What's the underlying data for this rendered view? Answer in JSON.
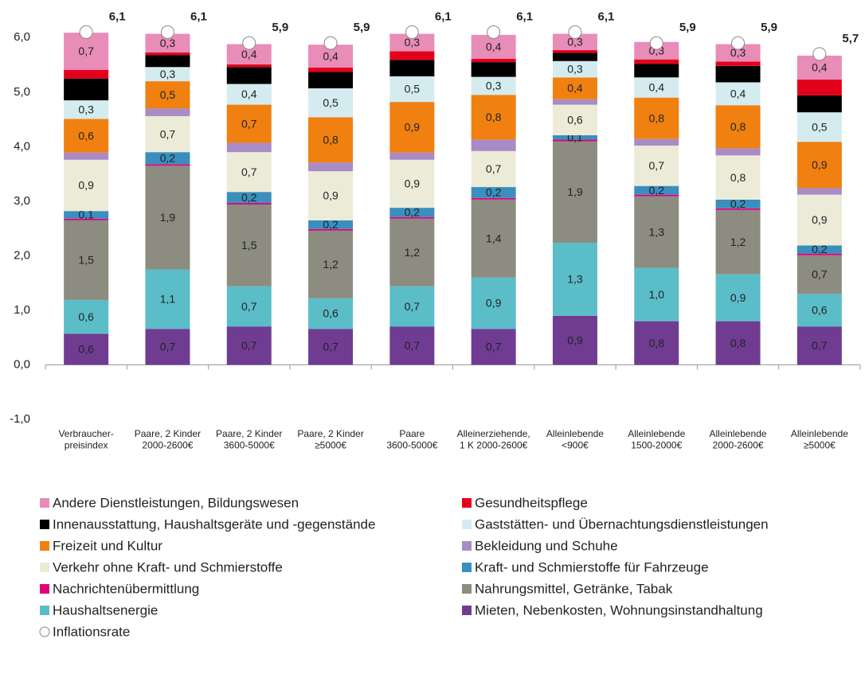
{
  "chart_data": {
    "type": "bar",
    "stacked": true,
    "categories": [
      "Verbraucher-\npreisindex",
      "Paare, 2  Kinder\n2000-2600€",
      "Paare, 2  Kinder\n3600-5000€",
      "Paare, 2  Kinder\n≥5000€",
      "Paare\n3600-5000€",
      "Alleinerziehende,\n1 K 2000-2600€",
      "Alleinlebende\n<900€",
      "Alleinlebende\n1500-2000€",
      "Alleinlebende\n2000-2600€",
      "Alleinlebende\n≥5000€"
    ],
    "ylim": [
      -1,
      6.5
    ],
    "yticks": [
      {
        "value": -1,
        "label": "-1,0"
      },
      {
        "value": 0,
        "label": "0,0"
      },
      {
        "value": 1,
        "label": "1,0"
      },
      {
        "value": 2,
        "label": "2,0"
      },
      {
        "value": 3,
        "label": "3,0"
      },
      {
        "value": 4,
        "label": "4,0"
      },
      {
        "value": 5,
        "label": "5,0"
      },
      {
        "value": 6,
        "label": "6,0"
      }
    ],
    "series": [
      {
        "name": "Mieten, Nebenkosten, Wohnungsinstandhaltung",
        "color": "#6f3c92",
        "values": [
          0.57,
          0.66,
          0.7,
          0.66,
          0.7,
          0.66,
          0.9,
          0.8,
          0.8,
          0.7
        ],
        "value_labels": [
          "0,6",
          "0,7",
          "0,7",
          "0,7",
          "0,7",
          "0,7",
          "0,9",
          "0,8",
          "0,8",
          "0,7"
        ]
      },
      {
        "name": "Haushaltsenergie",
        "color": "#5bbdc8",
        "values": [
          0.62,
          1.09,
          0.74,
          0.56,
          0.74,
          0.94,
          1.34,
          0.98,
          0.86,
          0.6
        ],
        "value_labels": [
          "0,6",
          "1,1",
          "0,7",
          "0,6",
          "0,7",
          "0,9",
          "1,3",
          "1,0",
          "0,9",
          "0,6"
        ]
      },
      {
        "name": "Nahrungsmittel, Getränke, Tabak",
        "color": "#8c8c80",
        "values": [
          1.46,
          1.9,
          1.5,
          1.24,
          1.24,
          1.43,
          1.86,
          1.31,
          1.18,
          0.71
        ],
        "value_labels": [
          "1,5",
          "1,9",
          "1,5",
          "1,2",
          "1,2",
          "1,4",
          "1,9",
          "1,3",
          "1,2",
          "0,7"
        ]
      },
      {
        "name": "Nachrichtenübermittlung",
        "color": "#e0007a",
        "values": [
          0.03,
          0.03,
          0.03,
          0.03,
          0.03,
          0.03,
          0.03,
          0.03,
          0.03,
          0.03
        ],
        "value_labels": [
          null,
          null,
          null,
          null,
          null,
          null,
          null,
          null,
          null,
          null
        ]
      },
      {
        "name": "Kraft- und Schmierstoffe für Fahrzeuge",
        "color": "#3a8fbf",
        "values": [
          0.14,
          0.22,
          0.2,
          0.16,
          0.17,
          0.2,
          0.08,
          0.16,
          0.16,
          0.15
        ],
        "value_labels": [
          "0,1",
          "0,2",
          "0,2",
          "0,2",
          "0,2",
          "0,2",
          "0,1",
          "0,2",
          "0,2",
          "0,2"
        ]
      },
      {
        "name": "Verkehr ohne Kraft- und Schmierstoffe",
        "color": "#ecebd8",
        "values": [
          0.94,
          0.66,
          0.73,
          0.9,
          0.88,
          0.66,
          0.56,
          0.74,
          0.81,
          0.93
        ],
        "value_labels": [
          "0,9",
          "0,7",
          "0,7",
          "0,9",
          "0,9",
          "0,7",
          "0,6",
          "0,7",
          "0,8",
          "0,9"
        ]
      },
      {
        "name": "Bekleidung und Schuhe",
        "color": "#a98bc6",
        "values": [
          0.13,
          0.14,
          0.17,
          0.16,
          0.13,
          0.21,
          0.1,
          0.12,
          0.13,
          0.12
        ],
        "value_labels": [
          null,
          null,
          null,
          null,
          null,
          null,
          null,
          null,
          null,
          null
        ]
      },
      {
        "name": "Freizeit und Kultur",
        "color": "#f08010",
        "values": [
          0.62,
          0.5,
          0.7,
          0.83,
          0.93,
          0.82,
          0.4,
          0.76,
          0.79,
          0.85
        ],
        "value_labels": [
          "0,6",
          "0,5",
          "0,7",
          "0,8",
          "0,9",
          "0,8",
          "0,4",
          "0,8",
          "0,8",
          "0,9"
        ]
      },
      {
        "name": "Gaststätten- und Übernachtungsdienstleistungen",
        "color": "#d4ecf0",
        "values": [
          0.34,
          0.26,
          0.38,
          0.53,
          0.47,
          0.33,
          0.3,
          0.37,
          0.42,
          0.54
        ],
        "value_labels": [
          "0,3",
          "0,3",
          "0,4",
          "0,5",
          "0,5",
          "0,3",
          "0,3",
          "0,4",
          "0,4",
          "0,5"
        ]
      },
      {
        "name": "Innenausstattung, Haushaltsgeräte und -gegenstände",
        "color": "#000000",
        "values": [
          0.4,
          0.22,
          0.31,
          0.3,
          0.3,
          0.27,
          0.15,
          0.25,
          0.3,
          0.31
        ],
        "value_labels": [
          null,
          null,
          null,
          null,
          null,
          null,
          null,
          null,
          null,
          null
        ]
      },
      {
        "name": "Gesundheitspflege",
        "color": "#e3001b",
        "values": [
          0.16,
          0.05,
          0.05,
          0.08,
          0.16,
          0.06,
          0.05,
          0.08,
          0.08,
          0.29
        ],
        "value_labels": [
          null,
          null,
          null,
          null,
          null,
          null,
          null,
          null,
          null,
          null
        ]
      },
      {
        "name": "Andere Dienstleistungen, Bildungswesen",
        "color": "#e88cb8",
        "values": [
          0.68,
          0.34,
          0.37,
          0.42,
          0.32,
          0.44,
          0.3,
          0.32,
          0.32,
          0.44
        ],
        "value_labels": [
          "0,7",
          "0,3",
          "0,4",
          "0,4",
          "0,3",
          "0,4",
          "0,3",
          "0,3",
          "0,3",
          "0,4"
        ]
      }
    ],
    "inflation": {
      "name": "Inflationsrate",
      "values": [
        6.1,
        6.1,
        5.9,
        5.9,
        6.1,
        6.1,
        6.1,
        5.9,
        5.9,
        5.7
      ],
      "value_labels": [
        "6,1",
        "6,1",
        "5,9",
        "5,9",
        "6,1",
        "6,1",
        "6,1",
        "5,9",
        "5,9",
        "5,7"
      ]
    }
  }
}
